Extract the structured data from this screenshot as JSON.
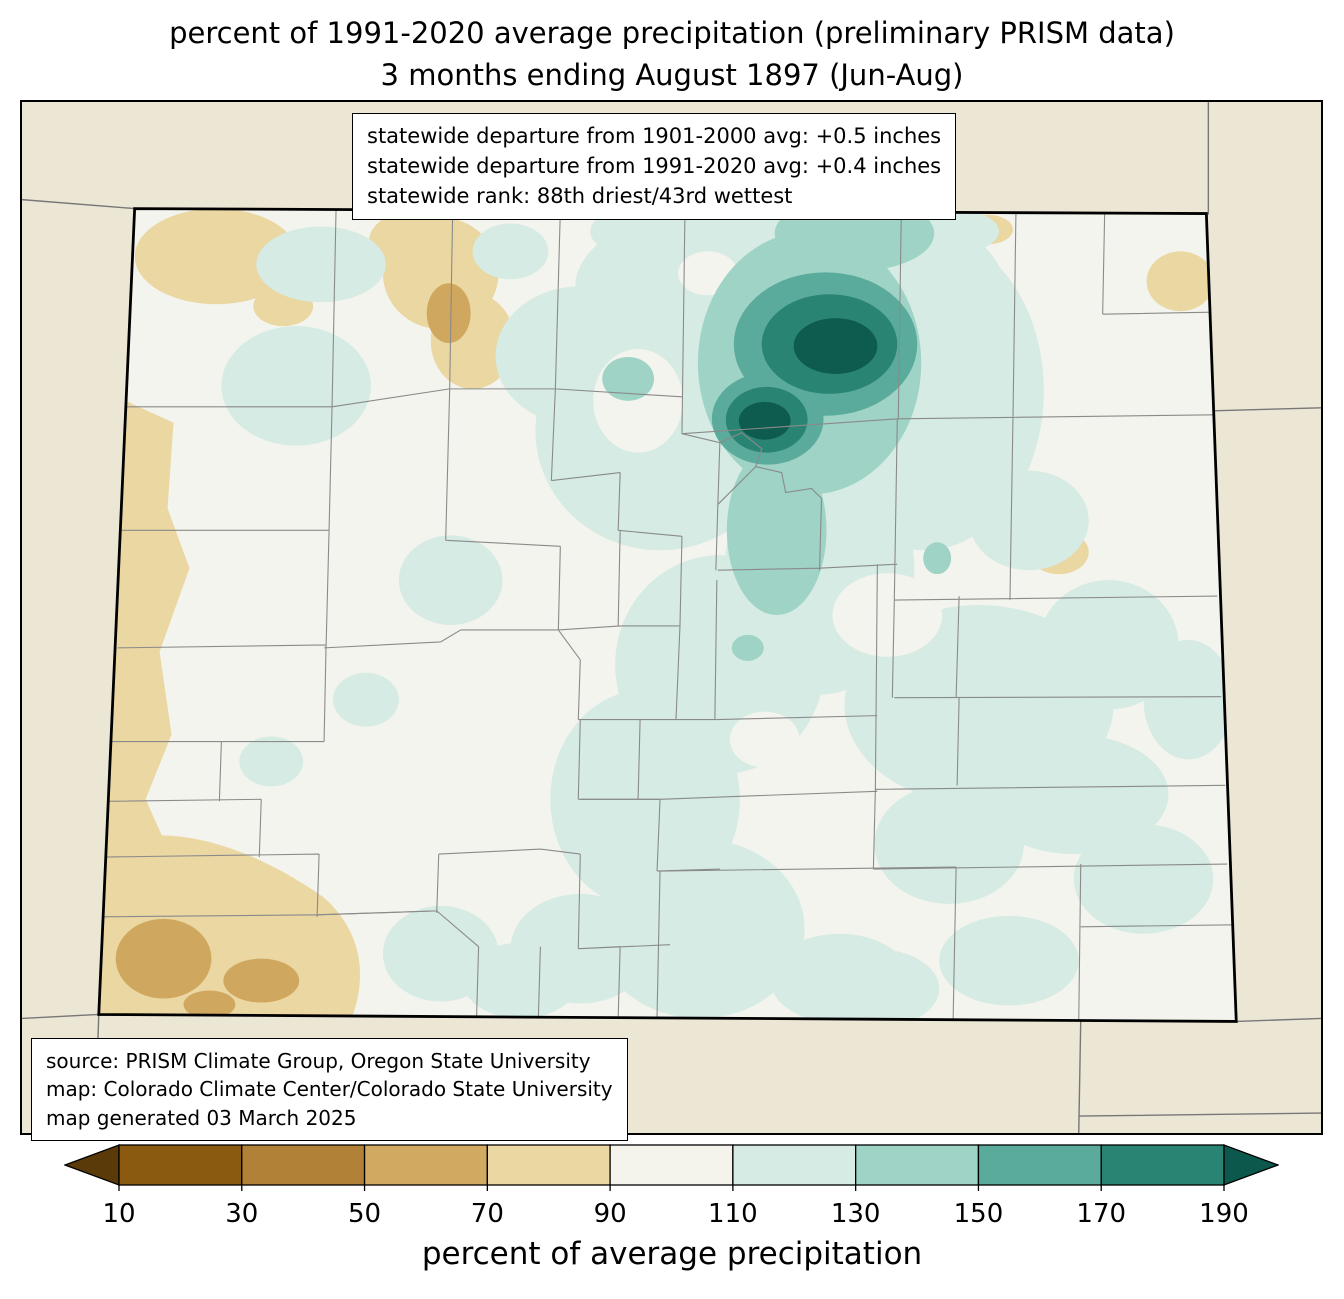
{
  "title": {
    "line1": "percent of 1991-2020 average precipitation (preliminary PRISM data)",
    "line2": "3 months ending August 1897 (Jun-Aug)"
  },
  "stats_box": {
    "lines": [
      "statewide departure from 1901-2000 avg: +0.5 inches",
      "statewide departure from 1991-2020 avg: +0.4 inches",
      "statewide rank: 88th driest/43rd wettest"
    ]
  },
  "source_box": {
    "lines": [
      "source: PRISM Climate Group, Oregon State University",
      "map: Colorado Climate Center/Colorado State University",
      "map generated 03 March 2025"
    ]
  },
  "colorbar": {
    "label": "percent of average precipitation",
    "ticks": [
      "10",
      "30",
      "50",
      "70",
      "90",
      "110",
      "130",
      "150",
      "170",
      "190"
    ],
    "segment_colors": [
      "#8a5a10",
      "#b28138",
      "#d2a961",
      "#ead7a2",
      "#f4f4ec",
      "#d5ebe3",
      "#9ed3c5",
      "#5aab9b",
      "#2a8474"
    ],
    "under_arrow_color": "#5a3a08",
    "over_arrow_color": "#0c584c"
  },
  "map": {
    "colors": {
      "outside_state": "#ece6d4",
      "pct_50_70": "#d0a75e",
      "pct_70_90": "#ead7a2",
      "pct_90_110": "#f4f4ee",
      "pct_110_130": "#d5ebe3",
      "pct_130_150": "#9ed3c5",
      "pct_150_170": "#5aab9b",
      "pct_170_190": "#2a8474",
      "pct_over_190": "#0e5c50",
      "county_line": "#8a8a8a",
      "state_border": "#000000"
    }
  }
}
